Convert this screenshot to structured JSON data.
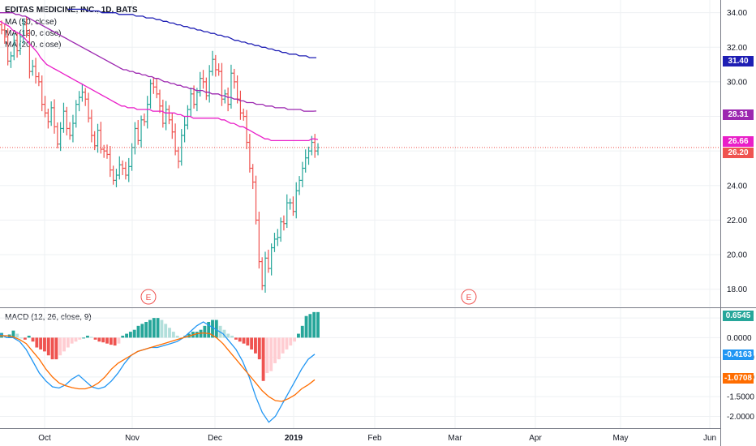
{
  "legend": {
    "title": "EDITAS MEDICINE, INC., 1D, BATS",
    "ma50": "MA (50, close)",
    "ma100": "MA (100, close)",
    "ma200": "MA (200, close)",
    "macd": "MACD (12, 26, close, 9)"
  },
  "colors": {
    "up": "#26a69a",
    "down": "#ef5350",
    "ma_long": "#1e1eb4",
    "ma_mid": "#9c27b0",
    "macd_line": "#2196f3",
    "signal_line": "#ff6d00",
    "price_line": "#ef5350",
    "hist_up_strong": "#26a69a",
    "hist_up_weak": "#b2dfdb",
    "hist_down_strong": "#ef5350",
    "hist_down_weak": "#ffcdd2"
  },
  "price_tags": {
    "ma_long": "31.40",
    "ma_mid": "28.31",
    "ma_short": "26.66",
    "last": "26.20",
    "hist": "0.6545",
    "macd": "-0.4163",
    "signal": "-1.0708"
  },
  "chart_data": [
    {
      "type": "candlestick",
      "title": "EDITAS MEDICINE, INC., 1D, BATS",
      "ylim": [
        17,
        34.5
      ],
      "y_ticks": [
        "18.00",
        "20.00",
        "22.00",
        "24.00",
        "26.00",
        "28.00",
        "30.00",
        "32.00",
        "34.00"
      ],
      "x_ticks": [
        "Oct",
        "Nov",
        "Dec",
        "2019",
        "Feb",
        "Mar",
        "Apr",
        "May",
        "Jun"
      ],
      "earnings_markers": [
        {
          "x": "2018-11-07",
          "label": "E"
        },
        {
          "x": "2019-02-27",
          "label": "E"
        }
      ],
      "close": [
        33.0,
        32.6,
        31.2,
        31.5,
        32.4,
        31.8,
        32.6,
        33.3,
        32.8,
        30.6,
        30.9,
        30.3,
        30.0,
        28.7,
        28.2,
        27.7,
        28.5,
        27.4,
        26.4,
        27.3,
        28.3,
        27.3,
        26.9,
        27.6,
        28.7,
        29.1,
        29.4,
        29.0,
        27.9,
        26.9,
        26.3,
        27.2,
        26.1,
        26.0,
        25.8,
        24.9,
        24.3,
        24.6,
        25.2,
        25.0,
        24.6,
        25.1,
        26.2,
        27.3,
        26.6,
        27.8,
        27.7,
        28.7,
        29.9,
        29.7,
        29.3,
        28.6,
        27.6,
        28.4,
        27.8,
        27.1,
        26.0,
        25.4,
        26.9,
        27.5,
        28.4,
        29.3,
        28.7,
        29.4,
        30.2,
        30.0,
        29.2,
        30.6,
        31.3,
        30.7,
        30.6,
        29.0,
        29.3,
        28.7,
        30.5,
        30.0,
        29.0,
        28.2,
        28.0,
        26.5,
        25.0,
        24.2,
        22.0,
        19.6,
        18.2,
        19.8,
        19.2,
        20.4,
        20.9,
        21.0,
        21.9,
        21.8,
        23.0,
        23.0,
        22.5,
        23.7,
        24.3,
        25.0,
        25.6,
        26.0,
        26.5,
        26.0,
        26.2
      ],
      "ma50": [
        33.5,
        33.4,
        33.3,
        33.2,
        33.0,
        32.9,
        32.8,
        32.7,
        32.5,
        32.3,
        32.1,
        31.9,
        31.7,
        31.4,
        31.2,
        31.0,
        30.9,
        30.8,
        30.7,
        30.6,
        30.5,
        30.4,
        30.3,
        30.2,
        30.1,
        30.0,
        29.9,
        29.8,
        29.7,
        29.6,
        29.5,
        29.4,
        29.3,
        29.2,
        29.1,
        29.0,
        28.9,
        28.8,
        28.7,
        28.6,
        28.6,
        28.5,
        28.5,
        28.5,
        28.4,
        28.4,
        28.4,
        28.4,
        28.4,
        28.3,
        28.3,
        28.3,
        28.3,
        28.2,
        28.2,
        28.2,
        28.2,
        28.1,
        28.1,
        28.0,
        28.0,
        28.0,
        27.9,
        27.9,
        27.9,
        27.9,
        27.9,
        27.9,
        27.9,
        27.9,
        27.9,
        27.8,
        27.8,
        27.7,
        27.6,
        27.6,
        27.5,
        27.4,
        27.4,
        27.3,
        27.2,
        27.1,
        27.0,
        26.9,
        26.8,
        26.7,
        26.7,
        26.6,
        26.6,
        26.6,
        26.6,
        26.6,
        26.6,
        26.6,
        26.6,
        26.6,
        26.6,
        26.6,
        26.6,
        26.6,
        26.7,
        26.7,
        26.66
      ],
      "ma100": [
        34.0,
        34.0,
        34.0,
        34.0,
        34.0,
        33.9,
        33.9,
        33.8,
        33.8,
        33.7,
        33.6,
        33.5,
        33.4,
        33.3,
        33.2,
        33.1,
        33.0,
        32.9,
        32.8,
        32.7,
        32.6,
        32.5,
        32.4,
        32.3,
        32.2,
        32.1,
        32.0,
        31.9,
        31.8,
        31.7,
        31.6,
        31.5,
        31.4,
        31.3,
        31.2,
        31.1,
        31.0,
        30.9,
        30.8,
        30.7,
        30.7,
        30.6,
        30.6,
        30.5,
        30.5,
        30.4,
        30.4,
        30.3,
        30.3,
        30.2,
        30.2,
        30.1,
        30.0,
        30.0,
        29.9,
        29.9,
        29.8,
        29.8,
        29.7,
        29.7,
        29.6,
        29.6,
        29.5,
        29.5,
        29.5,
        29.4,
        29.4,
        29.3,
        29.3,
        29.3,
        29.2,
        29.2,
        29.1,
        29.1,
        29.0,
        29.0,
        28.9,
        28.9,
        28.8,
        28.8,
        28.8,
        28.7,
        28.7,
        28.7,
        28.6,
        28.6,
        28.6,
        28.5,
        28.5,
        28.5,
        28.5,
        28.4,
        28.4,
        28.4,
        28.4,
        28.4,
        28.3,
        28.3,
        28.3,
        28.3,
        28.31
      ],
      "ma200": [
        null,
        null,
        null,
        null,
        null,
        null,
        null,
        null,
        null,
        null,
        null,
        null,
        null,
        null,
        null,
        null,
        null,
        null,
        null,
        null,
        34.2,
        34.2,
        34.2,
        34.2,
        34.2,
        34.2,
        34.1,
        34.1,
        34.1,
        34.1,
        34.0,
        34.0,
        34.0,
        34.0,
        34.0,
        33.9,
        33.9,
        33.9,
        33.9,
        33.9,
        33.8,
        33.8,
        33.8,
        33.7,
        33.7,
        33.7,
        33.6,
        33.6,
        33.5,
        33.5,
        33.4,
        33.4,
        33.3,
        33.3,
        33.2,
        33.2,
        33.1,
        33.1,
        33.0,
        33.0,
        32.9,
        32.9,
        32.8,
        32.8,
        32.7,
        32.7,
        32.6,
        32.6,
        32.5,
        32.4,
        32.4,
        32.3,
        32.3,
        32.2,
        32.2,
        32.1,
        32.1,
        32.0,
        32.0,
        31.9,
        31.9,
        31.8,
        31.8,
        31.7,
        31.7,
        31.6,
        31.6,
        31.6,
        31.5,
        31.5,
        31.5,
        31.4,
        31.4,
        31.4
      ],
      "last_price": 26.2
    },
    {
      "type": "bar",
      "title": "MACD (12, 26, close, 9)",
      "ylim": [
        -2.3,
        0.75
      ],
      "y_ticks": [
        "0.5000",
        "0.0000",
        "-0.5000",
        "-1.0000",
        "-1.5000",
        "-2.0000"
      ],
      "histogram": [
        0.12,
        0.05,
        0.08,
        0.18,
        0.1,
        0.0,
        -0.05,
        0.05,
        -0.1,
        -0.25,
        -0.3,
        -0.35,
        -0.45,
        -0.55,
        -0.55,
        -0.45,
        -0.35,
        -0.25,
        -0.15,
        -0.1,
        -0.05,
        0.0,
        0.05,
        0.02,
        -0.05,
        -0.1,
        -0.12,
        -0.15,
        -0.18,
        -0.2,
        -0.15,
        0.05,
        0.1,
        0.15,
        0.2,
        0.3,
        0.35,
        0.4,
        0.45,
        0.5,
        0.5,
        0.45,
        0.35,
        0.25,
        0.15,
        0.05,
        0.0,
        0.05,
        0.1,
        0.15,
        0.15,
        0.2,
        0.3,
        0.4,
        0.45,
        0.45,
        0.3,
        0.2,
        0.1,
        0.05,
        -0.05,
        -0.1,
        -0.15,
        -0.2,
        -0.3,
        -0.4,
        -0.55,
        -1.1,
        -0.9,
        -0.85,
        -0.65,
        -0.55,
        -0.4,
        -0.3,
        -0.2,
        -0.1,
        0.1,
        0.3,
        0.55,
        0.6,
        0.65,
        0.65
      ],
      "macd": [
        0.1,
        0.0,
        0.0,
        -0.1,
        -0.3,
        -0.6,
        -0.9,
        -1.1,
        -1.25,
        -1.28,
        -1.2,
        -1.05,
        -0.95,
        -1.1,
        -1.25,
        -1.3,
        -1.25,
        -1.1,
        -0.9,
        -0.65,
        -0.45,
        -0.35,
        -0.3,
        -0.25,
        -0.25,
        -0.2,
        -0.15,
        -0.1,
        0.0,
        0.15,
        0.3,
        0.4,
        0.3,
        0.2,
        0.1,
        -0.1,
        -0.3,
        -0.6,
        -1.0,
        -1.5,
        -1.9,
        -2.15,
        -2.0,
        -1.7,
        -1.4,
        -1.1,
        -0.8,
        -0.55,
        -0.42
      ],
      "signal": [
        0.05,
        0.05,
        0.02,
        -0.05,
        -0.15,
        -0.35,
        -0.55,
        -0.8,
        -1.0,
        -1.15,
        -1.22,
        -1.27,
        -1.3,
        -1.3,
        -1.25,
        -1.15,
        -1.0,
        -0.8,
        -0.65,
        -0.55,
        -0.45,
        -0.35,
        -0.3,
        -0.25,
        -0.2,
        -0.15,
        -0.1,
        -0.05,
        0.0,
        0.05,
        0.1,
        0.12,
        0.1,
        0.0,
        -0.15,
        -0.35,
        -0.55,
        -0.75,
        -0.95,
        -1.15,
        -1.35,
        -1.5,
        -1.6,
        -1.62,
        -1.55,
        -1.45,
        -1.3,
        -1.2,
        -1.07
      ]
    }
  ]
}
